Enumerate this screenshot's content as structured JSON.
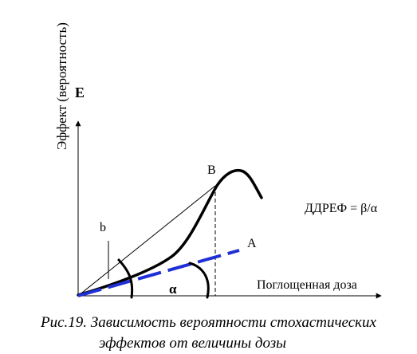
{
  "y_axis_letter": "E",
  "y_axis_title": "Эффект (вероятность)",
  "x_axis_title": "Поглощенная доза",
  "point_labels": {
    "B": "B",
    "A": "A",
    "b": "b",
    "alpha": "α"
  },
  "formula": "ДДРЕФ = β/α",
  "caption": {
    "line1": "Рис.19. Зависимость вероятности стохастических",
    "line2": "эффектов от величины дозы"
  },
  "colors": {
    "dashed_line": "#1f2fd6",
    "ink": "#000000"
  }
}
